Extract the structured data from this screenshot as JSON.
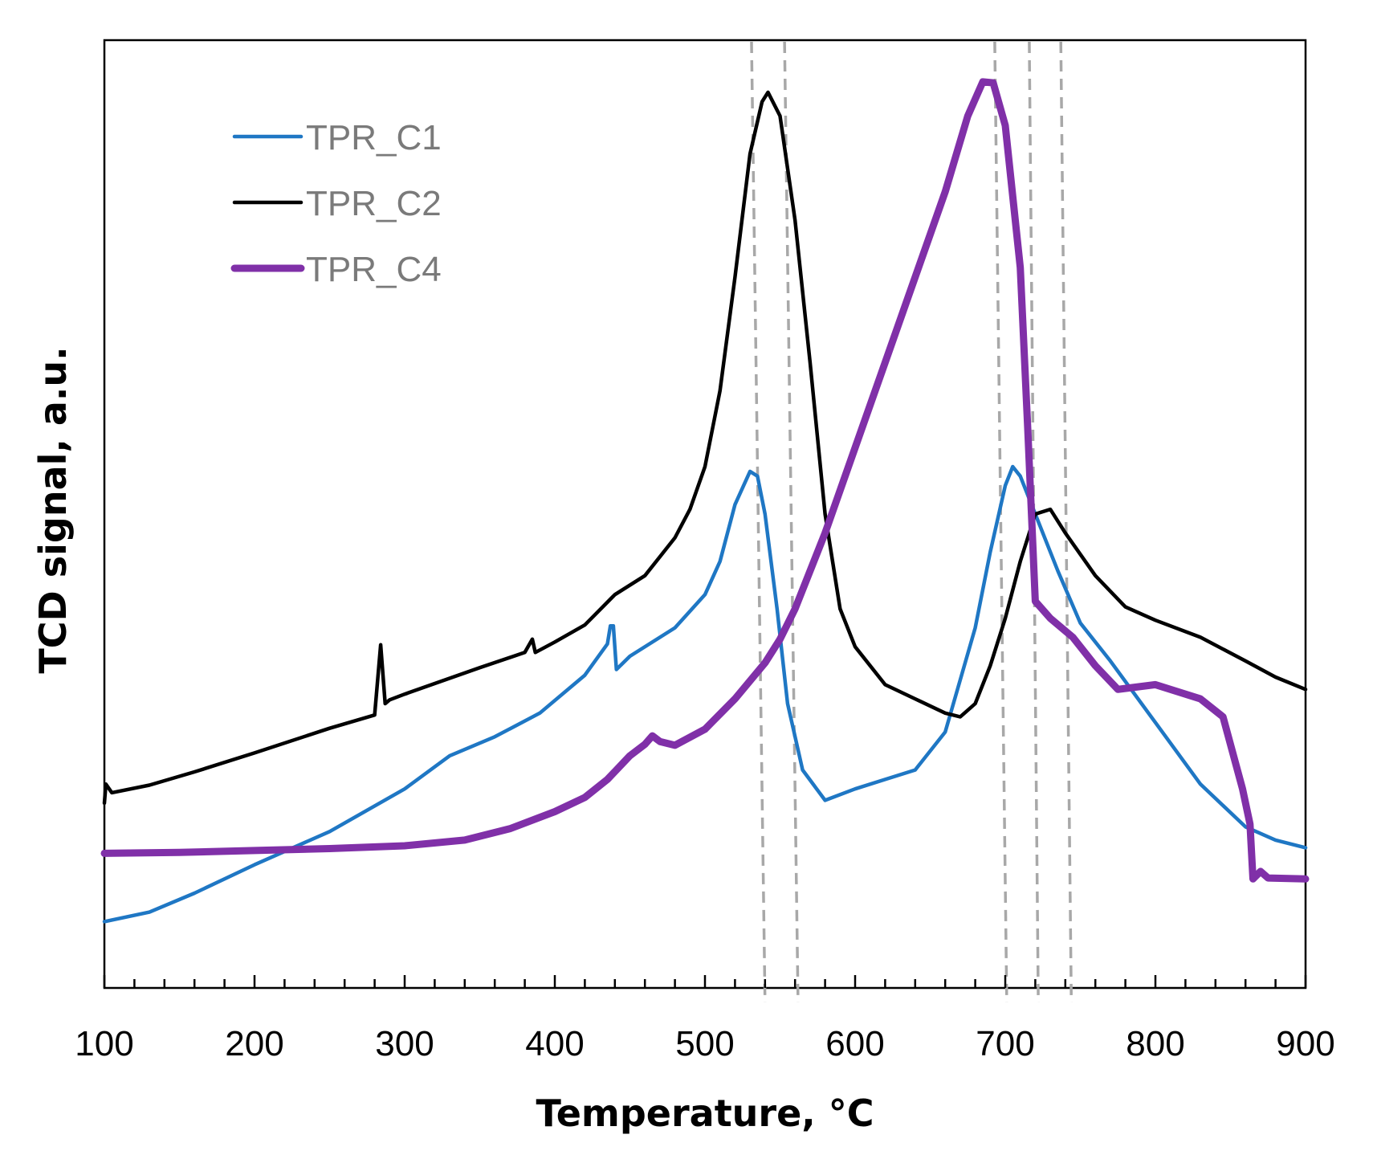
{
  "chart_data": {
    "type": "line",
    "xlabel": "Temperature, °C",
    "ylabel": "TCD signal, a.u.",
    "xlim": [
      100,
      900
    ],
    "ylim": [
      0,
      100
    ],
    "xticks": [
      "100",
      "200",
      "300",
      "400",
      "500",
      "600",
      "700",
      "800",
      "900"
    ],
    "minor_tick_step": 20,
    "legend_position": "top-left",
    "series": [
      {
        "name": "TPR_C1",
        "color": "#1f77c4",
        "points": [
          [
            100,
            7
          ],
          [
            130,
            8
          ],
          [
            160,
            10
          ],
          [
            200,
            13
          ],
          [
            250,
            16.5
          ],
          [
            300,
            21
          ],
          [
            330,
            24.5
          ],
          [
            360,
            26.5
          ],
          [
            390,
            29
          ],
          [
            420,
            33
          ],
          [
            435,
            36.3
          ],
          [
            437,
            38.2
          ],
          [
            439,
            38.2
          ],
          [
            441,
            33.6
          ],
          [
            450,
            35
          ],
          [
            480,
            38
          ],
          [
            500,
            41.5
          ],
          [
            510,
            45
          ],
          [
            520,
            51
          ],
          [
            530,
            54.5
          ],
          [
            535,
            54
          ],
          [
            540,
            50
          ],
          [
            548,
            40
          ],
          [
            555,
            30
          ],
          [
            565,
            23
          ],
          [
            580,
            19.8
          ],
          [
            600,
            21
          ],
          [
            620,
            22
          ],
          [
            640,
            23
          ],
          [
            660,
            27
          ],
          [
            680,
            38
          ],
          [
            690,
            46
          ],
          [
            700,
            53
          ],
          [
            705,
            55
          ],
          [
            710,
            54
          ],
          [
            720,
            50
          ],
          [
            735,
            44
          ],
          [
            750,
            38.5
          ],
          [
            770,
            34.5
          ],
          [
            800,
            28
          ],
          [
            830,
            21.5
          ],
          [
            860,
            17
          ],
          [
            880,
            15.6
          ],
          [
            900,
            14.8
          ]
        ]
      },
      {
        "name": "TPR_C2",
        "color": "#000000",
        "points": [
          [
            100,
            19.5
          ],
          [
            101,
            21.5
          ],
          [
            105,
            20.6
          ],
          [
            130,
            21.4
          ],
          [
            160,
            22.8
          ],
          [
            200,
            24.8
          ],
          [
            250,
            27.4
          ],
          [
            280,
            28.8
          ],
          [
            284,
            36.2
          ],
          [
            287,
            30
          ],
          [
            290,
            30.4
          ],
          [
            300,
            31
          ],
          [
            350,
            33.8
          ],
          [
            380,
            35.4
          ],
          [
            385,
            36.8
          ],
          [
            387,
            35.4
          ],
          [
            400,
            36.5
          ],
          [
            420,
            38.3
          ],
          [
            440,
            41.5
          ],
          [
            460,
            43.5
          ],
          [
            470,
            45.5
          ],
          [
            480,
            47.5
          ],
          [
            490,
            50.5
          ],
          [
            500,
            55
          ],
          [
            510,
            63
          ],
          [
            520,
            75
          ],
          [
            530,
            88
          ],
          [
            538,
            93.5
          ],
          [
            542,
            94.5
          ],
          [
            550,
            92
          ],
          [
            560,
            81
          ],
          [
            570,
            66
          ],
          [
            580,
            50
          ],
          [
            590,
            40
          ],
          [
            600,
            36
          ],
          [
            620,
            32
          ],
          [
            640,
            30.5
          ],
          [
            660,
            29
          ],
          [
            670,
            28.6
          ],
          [
            680,
            30
          ],
          [
            690,
            34
          ],
          [
            700,
            39
          ],
          [
            710,
            45
          ],
          [
            720,
            50
          ],
          [
            730,
            50.5
          ],
          [
            740,
            48
          ],
          [
            760,
            43.5
          ],
          [
            780,
            40.2
          ],
          [
            800,
            38.8
          ],
          [
            830,
            37
          ],
          [
            860,
            34.5
          ],
          [
            880,
            32.8
          ],
          [
            900,
            31.5
          ]
        ]
      },
      {
        "name": "TPR_C4",
        "color": "#8030a8",
        "points": [
          [
            100,
            14.2
          ],
          [
            150,
            14.3
          ],
          [
            200,
            14.5
          ],
          [
            250,
            14.7
          ],
          [
            300,
            15
          ],
          [
            340,
            15.6
          ],
          [
            370,
            16.8
          ],
          [
            400,
            18.6
          ],
          [
            420,
            20.1
          ],
          [
            435,
            22
          ],
          [
            450,
            24.5
          ],
          [
            460,
            25.7
          ],
          [
            465,
            26.6
          ],
          [
            470,
            26
          ],
          [
            480,
            25.6
          ],
          [
            500,
            27.3
          ],
          [
            520,
            30.5
          ],
          [
            540,
            34.3
          ],
          [
            550,
            36.8
          ],
          [
            560,
            40
          ],
          [
            580,
            48
          ],
          [
            600,
            57
          ],
          [
            620,
            66
          ],
          [
            640,
            75
          ],
          [
            660,
            84
          ],
          [
            675,
            92
          ],
          [
            685,
            95.6
          ],
          [
            692,
            95.5
          ],
          [
            700,
            91
          ],
          [
            710,
            76
          ],
          [
            715,
            59
          ],
          [
            720,
            40.8
          ],
          [
            730,
            39
          ],
          [
            745,
            37
          ],
          [
            760,
            34
          ],
          [
            775,
            31.5
          ],
          [
            800,
            32
          ],
          [
            830,
            30.5
          ],
          [
            845,
            28.6
          ],
          [
            858,
            21
          ],
          [
            863,
            17.3
          ],
          [
            865,
            11.5
          ],
          [
            870,
            12.3
          ],
          [
            875,
            11.6
          ],
          [
            900,
            11.5
          ]
        ]
      }
    ],
    "dashed_reference_lines": [
      {
        "top": 531,
        "bottom": 540
      },
      {
        "top": 553,
        "bottom": 562
      },
      {
        "top": 693,
        "bottom": 701
      },
      {
        "top": 716,
        "bottom": 722
      },
      {
        "top": 737,
        "bottom": 744
      }
    ]
  }
}
